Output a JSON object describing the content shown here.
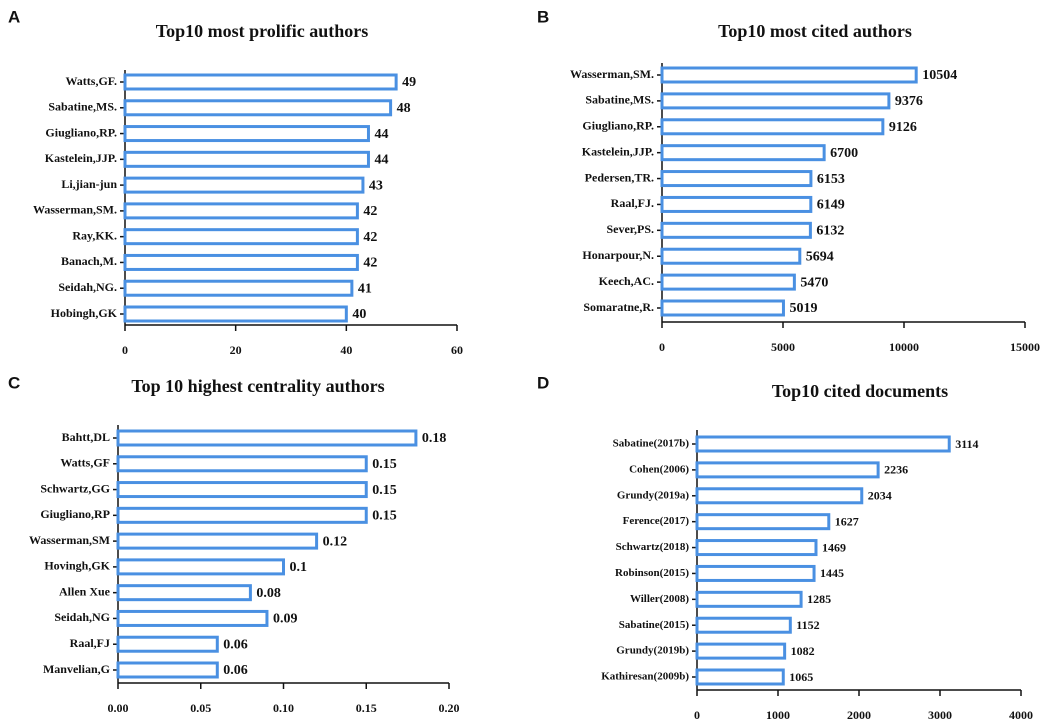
{
  "chart_data": [
    {
      "type": "bar",
      "orientation": "horizontal",
      "panel": "A",
      "title": "Top10 most prolific authors",
      "color": "#4a90e2",
      "categories": [
        "Watts,GF.",
        "Sabatine,MS.",
        "Giugliano,RP.",
        "Kastelein,JJP.",
        "Li,jian-jun",
        "Wasserman,SM.",
        "Ray,KK.",
        "Banach,M.",
        "Seidah,NG.",
        "Hobingh,GK"
      ],
      "values": [
        49,
        48,
        44,
        44,
        43,
        42,
        42,
        42,
        41,
        40
      ],
      "xlim": [
        0,
        60
      ],
      "xticks": [
        0,
        20,
        40,
        60
      ]
    },
    {
      "type": "bar",
      "orientation": "horizontal",
      "panel": "B",
      "title": "Top10 most cited authors",
      "color": "#4a90e2",
      "categories": [
        "Wasserman,SM.",
        "Sabatine,MS.",
        "Giugliano,RP.",
        "Kastelein,JJP.",
        "Pedersen,TR.",
        "Raal,FJ.",
        "Sever,PS.",
        "Honarpour,N.",
        "Keech,AC.",
        "Somaratne,R."
      ],
      "values": [
        10504,
        9376,
        9126,
        6700,
        6153,
        6149,
        6132,
        5694,
        5470,
        5019
      ],
      "xlim": [
        0,
        15000
      ],
      "xticks": [
        0,
        5000,
        10000,
        15000
      ]
    },
    {
      "type": "bar",
      "orientation": "horizontal",
      "panel": "C",
      "title": "Top 10  highest centrality authors",
      "color": "#4a90e2",
      "categories": [
        "Bahtt,DL",
        "Watts,GF",
        "Schwartz,GG",
        "Giugliano,RP",
        "Wasserman,SM",
        "Hovingh,GK",
        "Allen Xue",
        "Seidah,NG",
        "Raal,FJ",
        "Manvelian,G"
      ],
      "values": [
        0.18,
        0.15,
        0.15,
        0.15,
        0.12,
        0.1,
        0.08,
        0.09,
        0.06,
        0.06
      ],
      "xlim": [
        0,
        0.2
      ],
      "xticks": [
        {
          "value": 0,
          "label": "0.00"
        },
        {
          "value": 0.05,
          "label": "0.05"
        },
        {
          "value": 0.1,
          "label": "0.10"
        },
        {
          "value": 0.15,
          "label": "0.15"
        },
        {
          "value": 0.2,
          "label": "0.20"
        }
      ]
    },
    {
      "type": "bar",
      "orientation": "horizontal",
      "panel": "D",
      "title": "Top10 cited documents",
      "color": "#4a90e2",
      "categories": [
        "Sabatine(2017b)",
        "Cohen(2006)",
        "Grundy(2019a)",
        "Ference(2017)",
        "Schwartz(2018)",
        "Robinson(2015)",
        "Willer(2008)",
        "Sabatine(2015)",
        "Grundy(2019b)",
        "Kathiresan(2009b)"
      ],
      "values": [
        3114,
        2236,
        2034,
        1627,
        1469,
        1445,
        1285,
        1152,
        1082,
        1065
      ],
      "xlim": [
        0,
        4000
      ],
      "xticks": [
        0,
        1000,
        2000,
        3000,
        4000
      ]
    }
  ]
}
